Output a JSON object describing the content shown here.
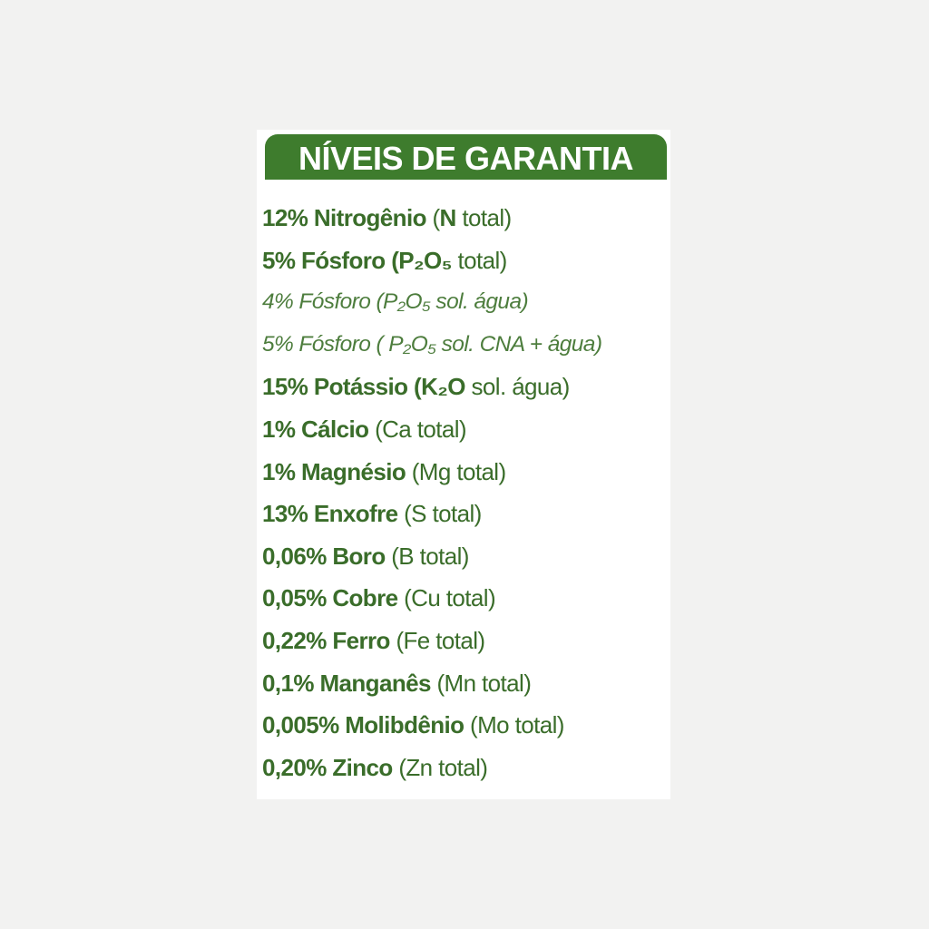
{
  "title": "NÍVEIS DE GARANTIA",
  "colors": {
    "header_bg": "#3e7c2d",
    "text": "#3a6d2a",
    "background": "#f2f2f1"
  },
  "items": [
    {
      "italic": false,
      "parts": [
        {
          "text": "12% Nitrogênio ",
          "bold": true
        },
        {
          "text": "(",
          "bold": false
        },
        {
          "text": "N",
          "bold": true
        },
        {
          "text": " total)",
          "bold": false
        }
      ]
    },
    {
      "italic": false,
      "parts": [
        {
          "text": "5% Fósforo (",
          "bold": true
        },
        {
          "text": "P₂O₅",
          "bold": true
        },
        {
          "text": " total)",
          "bold": false
        }
      ]
    },
    {
      "italic": true,
      "parts": [
        {
          "text": "4% Fósforo (P₂O₅ sol. água)",
          "bold": false
        }
      ]
    },
    {
      "italic": true,
      "parts": [
        {
          "text": "5% Fósforo ( P₂O₅ sol. CNA + água)",
          "bold": false
        }
      ]
    },
    {
      "italic": false,
      "parts": [
        {
          "text": "15% Potássio (",
          "bold": true
        },
        {
          "text": "K₂O",
          "bold": true
        },
        {
          "text": " sol. água)",
          "bold": false
        }
      ]
    },
    {
      "italic": false,
      "parts": [
        {
          "text": "1% Cálcio ",
          "bold": true
        },
        {
          "text": "(Ca total)",
          "bold": false
        }
      ]
    },
    {
      "italic": false,
      "parts": [
        {
          "text": "1% Magnésio ",
          "bold": true
        },
        {
          "text": "(Mg total)",
          "bold": false
        }
      ]
    },
    {
      "italic": false,
      "parts": [
        {
          "text": "13% Enxofre ",
          "bold": true
        },
        {
          "text": "(S total)",
          "bold": false
        }
      ]
    },
    {
      "italic": false,
      "parts": [
        {
          "text": "0,06% Boro ",
          "bold": true
        },
        {
          "text": "(B total)",
          "bold": false
        }
      ]
    },
    {
      "italic": false,
      "parts": [
        {
          "text": "0,05% Cobre ",
          "bold": true
        },
        {
          "text": "(Cu total)",
          "bold": false
        }
      ]
    },
    {
      "italic": false,
      "parts": [
        {
          "text": "0,22% Ferro ",
          "bold": true
        },
        {
          "text": "(Fe total)",
          "bold": false
        }
      ]
    },
    {
      "italic": false,
      "parts": [
        {
          "text": "0,1% Manganês ",
          "bold": true
        },
        {
          "text": "(Mn total)",
          "bold": false
        }
      ]
    },
    {
      "italic": false,
      "parts": [
        {
          "text": "0,005% Molibdênio ",
          "bold": true
        },
        {
          "text": "(Mo total)",
          "bold": false
        }
      ]
    },
    {
      "italic": false,
      "parts": [
        {
          "text": "0,20% Zinco ",
          "bold": true
        },
        {
          "text": "(Zn total)",
          "bold": false
        }
      ]
    }
  ]
}
